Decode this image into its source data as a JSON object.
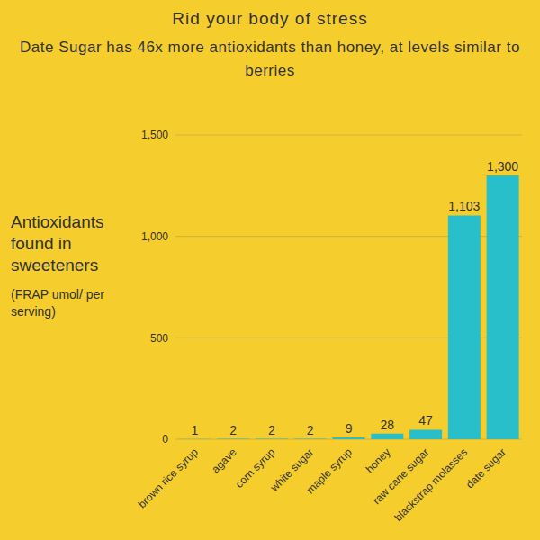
{
  "chart_data": {
    "type": "bar",
    "title": "Rid your body of stress",
    "subtitle": "Date Sugar has 46x more antioxidants than honey, at levels similar to berries",
    "ylabel": "Antioxidants found in sweeteners",
    "annotations": [
      "(FRAP umol/ per serving)"
    ],
    "categories": [
      "brown rice syrup",
      "agave",
      "corn syrup",
      "white sugar",
      "maple syrup",
      "honey",
      "raw cane sugar",
      "blackstrap molasses",
      "date sugar"
    ],
    "values": [
      1,
      2,
      2,
      2,
      9,
      28,
      47,
      1103,
      1300
    ],
    "value_labels": [
      "1",
      "2",
      "2",
      "2",
      "9",
      "28",
      "47",
      "1,103",
      "1,300"
    ],
    "color": "#29bfca",
    "ylim": [
      0,
      1500
    ],
    "yticks": [
      0,
      500,
      {
        "value": 1000,
        "label": "1,000"
      },
      {
        "value": 1500,
        "label": "1,500"
      }
    ],
    "grid": true,
    "data_labels": true
  }
}
